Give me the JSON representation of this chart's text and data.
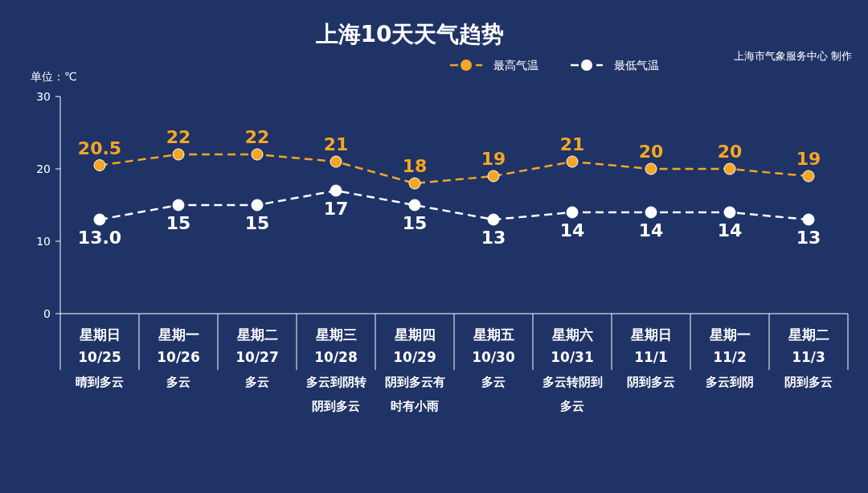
{
  "chart_data": {
    "type": "line",
    "title": "上海10天天气趋势",
    "ylabel": "单位：℃",
    "annotations": [
      "上海市气象服务中心 制作"
    ],
    "categories": [
      "星期日\n10/25\n晴到多云",
      "星期一\n10/26\n多云",
      "星期二\n10/27\n多云",
      "星期三\n10/28\n多云到阴转阴到多云",
      "星期四\n10/29\n阴到多云有时有小雨",
      "星期五\n10/30\n多云",
      "星期六\n10/31\n多云转阴到多云",
      "星期日\n11/1\n阴到多云",
      "星期一\n11/2\n多云到阴",
      "星期二\n11/3\n阴到多云"
    ],
    "series": [
      {
        "name": "最高气温",
        "color": "#f5a623",
        "values": [
          20.5,
          22,
          22,
          21,
          18,
          19,
          21,
          20,
          20,
          19
        ],
        "value_labels": [
          "20.5",
          "22",
          "22",
          "21",
          "18",
          "19",
          "21",
          "20",
          "20",
          "19"
        ]
      },
      {
        "name": "最低气温",
        "color": "#ffffff",
        "values": [
          13,
          15,
          15,
          17,
          15,
          13,
          14,
          14,
          14,
          13
        ],
        "value_labels": [
          "13.0",
          "15",
          "15",
          "17",
          "15",
          "13",
          "14",
          "14",
          "14",
          "13"
        ]
      }
    ],
    "ylim": [
      0,
      30
    ],
    "yticks": [
      0,
      10,
      20,
      30
    ],
    "legend": "top right",
    "marker": "circle",
    "line_style": "dashed"
  }
}
